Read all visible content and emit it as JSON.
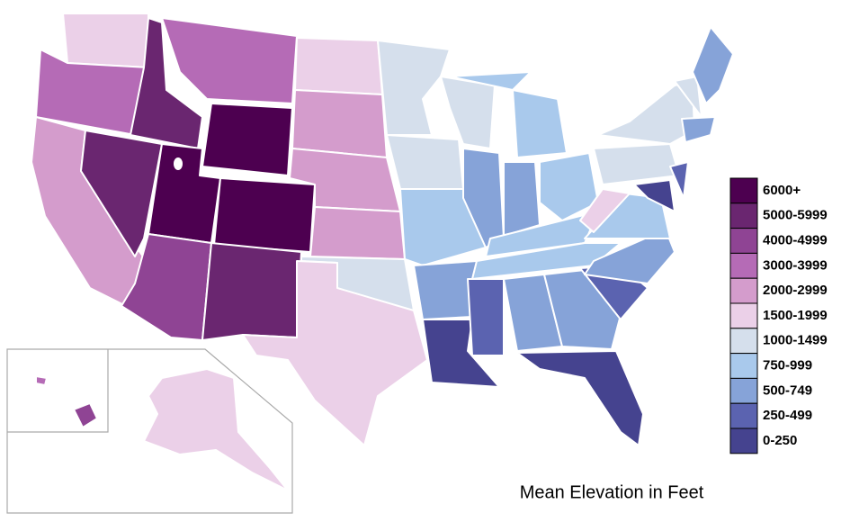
{
  "chart_data": {
    "type": "choropleth",
    "title": "Mean Elevation in Feet",
    "legend": [
      {
        "name": "6000+",
        "color": "#4d0050"
      },
      {
        "name": "5000-5999",
        "color": "#6a2670"
      },
      {
        "name": "4000-4999",
        "color": "#8f4494"
      },
      {
        "name": "3000-3999",
        "color": "#b56bb6"
      },
      {
        "name": "2000-2999",
        "color": "#d49ccc"
      },
      {
        "name": "1500-1999",
        "color": "#ebd0e8"
      },
      {
        "name": "1000-1499",
        "color": "#d5dfec"
      },
      {
        "name": "750-999",
        "color": "#a9c9ec"
      },
      {
        "name": "500-749",
        "color": "#86a3d8"
      },
      {
        "name": "250-499",
        "color": "#5b63b0"
      },
      {
        "name": "0-250",
        "color": "#45438f"
      }
    ]
  }
}
